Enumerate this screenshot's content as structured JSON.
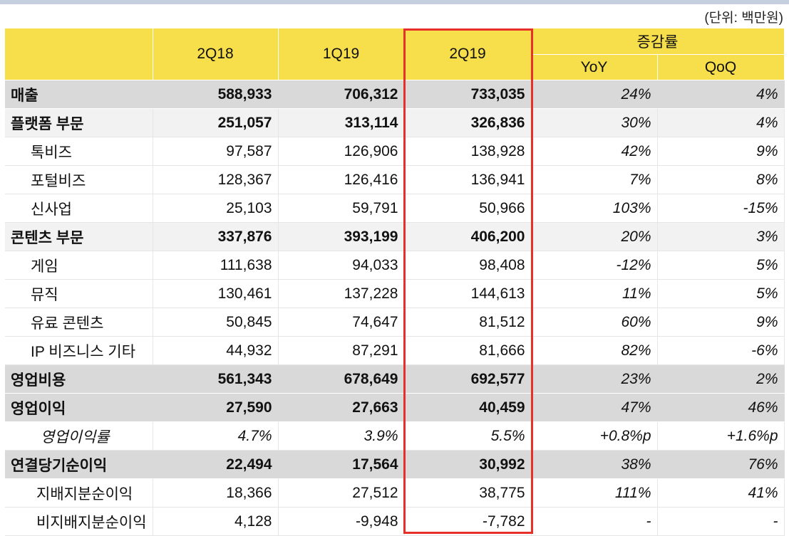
{
  "unit": "(단위: 백만원)",
  "headers": {
    "c1": "2Q18",
    "c2": "1Q19",
    "c3": "2Q19",
    "group": "증감률",
    "yoy": "YoY",
    "qoq": "QoQ"
  },
  "highlight_color": "#e8302a",
  "header_color": "#f7df4b",
  "rows": [
    {
      "label": "매출",
      "v": [
        "588,933",
        "706,312",
        "733,035",
        "24%",
        "4%"
      ],
      "type": "major"
    },
    {
      "label": "플랫폼 부문",
      "v": [
        "251,057",
        "313,114",
        "326,836",
        "30%",
        "4%"
      ],
      "type": "seg"
    },
    {
      "label": "톡비즈",
      "v": [
        "97,587",
        "126,906",
        "138,928",
        "42%",
        "9%"
      ],
      "type": "sub"
    },
    {
      "label": "포털비즈",
      "v": [
        "128,367",
        "126,416",
        "136,941",
        "7%",
        "8%"
      ],
      "type": "sub"
    },
    {
      "label": "신사업",
      "v": [
        "25,103",
        "59,791",
        "50,966",
        "103%",
        "-15%"
      ],
      "type": "sub"
    },
    {
      "label": "콘텐츠 부문",
      "v": [
        "337,876",
        "393,199",
        "406,200",
        "20%",
        "3%"
      ],
      "type": "seg"
    },
    {
      "label": "게임",
      "v": [
        "111,638",
        "94,033",
        "98,408",
        "-12%",
        "5%"
      ],
      "type": "sub"
    },
    {
      "label": "뮤직",
      "v": [
        "130,461",
        "137,228",
        "144,613",
        "11%",
        "5%"
      ],
      "type": "sub"
    },
    {
      "label": "유료 콘텐츠",
      "v": [
        "50,845",
        "74,647",
        "81,512",
        "60%",
        "9%"
      ],
      "type": "sub"
    },
    {
      "label": "IP 비즈니스 기타",
      "v": [
        "44,932",
        "87,291",
        "81,666",
        "82%",
        "-6%"
      ],
      "type": "sub"
    },
    {
      "label": "영업비용",
      "v": [
        "561,343",
        "678,649",
        "692,577",
        "23%",
        "2%"
      ],
      "type": "major"
    },
    {
      "label": "영업이익",
      "v": [
        "27,590",
        "27,663",
        "40,459",
        "47%",
        "46%"
      ],
      "type": "major"
    },
    {
      "label": "영업이익률",
      "v": [
        "4.7%",
        "3.9%",
        "5.5%",
        "+0.8%p",
        "+1.6%p"
      ],
      "type": "margin"
    },
    {
      "label": "연결당기순이익",
      "v": [
        "22,494",
        "17,564",
        "30,992",
        "38%",
        "76%"
      ],
      "type": "major"
    },
    {
      "label": "지배지분순이익",
      "v": [
        "18,366",
        "27,512",
        "38,775",
        "111%",
        "41%"
      ],
      "type": "sub2"
    },
    {
      "label": "비지배지분순이익",
      "v": [
        "4,128",
        "-9,948",
        "-7,782",
        "-",
        "-"
      ],
      "type": "sub2"
    }
  ]
}
